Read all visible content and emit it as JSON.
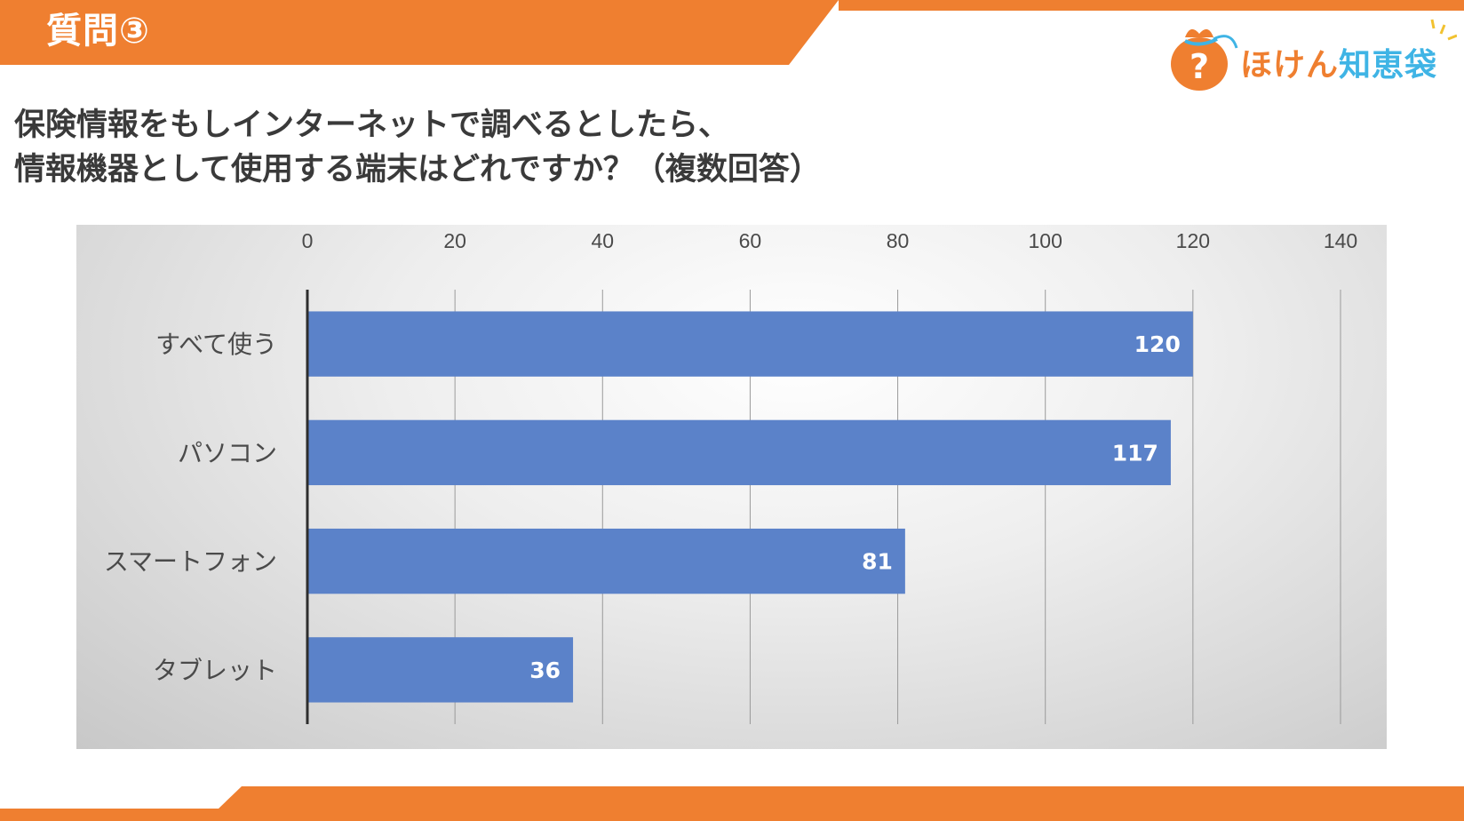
{
  "header": {
    "label": "質問③"
  },
  "logo": {
    "text_main": "ほけん",
    "text_accent": "知恵袋",
    "mark": "?"
  },
  "question": {
    "line1": "保険情報をもしインターネットで調べるとしたら、",
    "line2": "情報機器として使用する端末はどれですか？（複数回答）"
  },
  "colors": {
    "brand_orange": "#ef7f30",
    "bar": "#5b82c9",
    "bar_label": "#ffffff"
  },
  "chart_data": {
    "type": "bar",
    "orientation": "horizontal",
    "categories": [
      "すべて使う",
      "パソコン",
      "スマートフォン",
      "タブレット"
    ],
    "values": [
      120,
      117,
      81,
      36
    ],
    "data_labels": [
      "120",
      "117",
      "81",
      "36"
    ],
    "xlim": [
      0,
      140
    ],
    "xticks": [
      0,
      20,
      40,
      60,
      80,
      100,
      120,
      140
    ],
    "xtick_labels": [
      "0",
      "20",
      "40",
      "60",
      "80",
      "100",
      "120",
      "140"
    ],
    "axis_position": "top",
    "grid": true,
    "title": "",
    "xlabel": "",
    "ylabel": ""
  }
}
